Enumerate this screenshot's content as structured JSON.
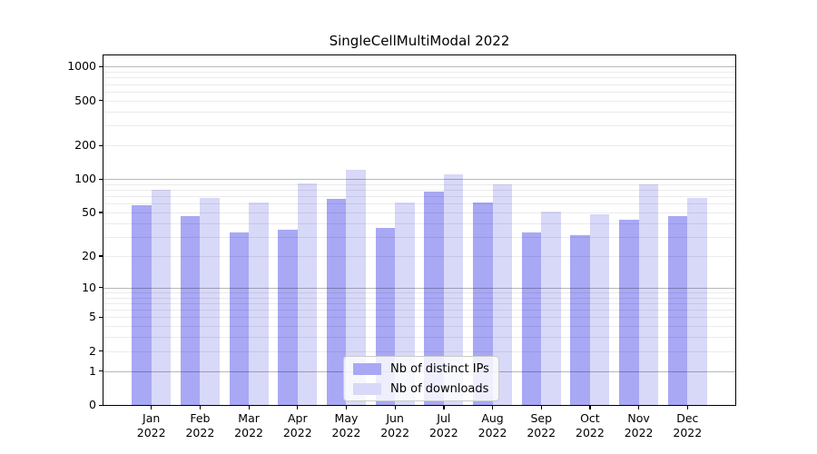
{
  "chart_data": {
    "type": "bar",
    "title": "SingleCellMultiModal 2022",
    "categories": [
      "Jan",
      "Feb",
      "Mar",
      "Apr",
      "May",
      "Jun",
      "Jul",
      "Aug",
      "Sep",
      "Oct",
      "Nov",
      "Dec"
    ],
    "year": "2022",
    "series": [
      {
        "name": "Nb of distinct IPs",
        "color": "#a8a8f5",
        "values": [
          58,
          46,
          33,
          35,
          66,
          36,
          77,
          61,
          33,
          31,
          43,
          46
        ]
      },
      {
        "name": "Nb of downloads",
        "color": "#d8d8f8",
        "values": [
          80,
          67,
          61,
          92,
          120,
          61,
          110,
          90,
          51,
          48,
          90,
          67
        ]
      }
    ],
    "yscale": "log1p",
    "ylim": [
      0,
      1260
    ],
    "y_ticks": [
      0,
      1,
      2,
      5,
      10,
      20,
      50,
      100,
      200,
      500,
      1000
    ],
    "y_major_gridlines": [
      1,
      10,
      100,
      1000
    ],
    "grid": true,
    "legend_position": "lower center",
    "xlabel": "",
    "ylabel": ""
  }
}
